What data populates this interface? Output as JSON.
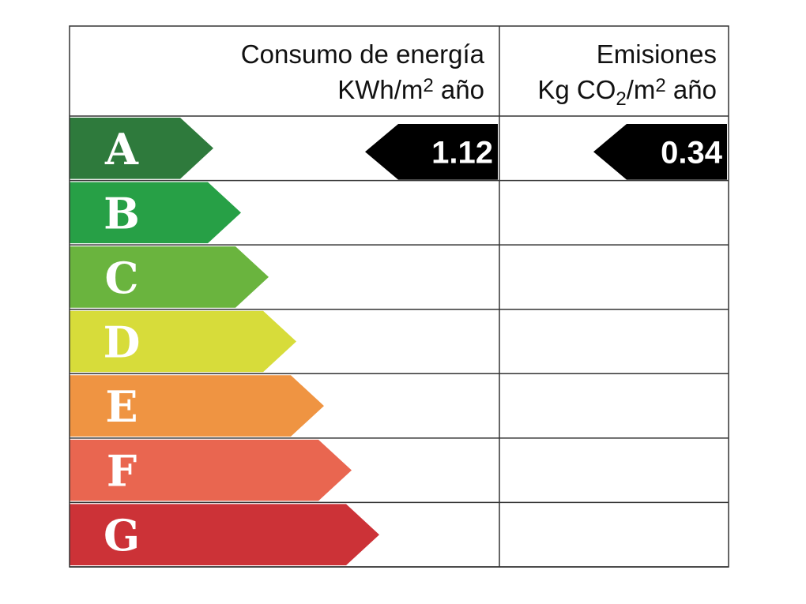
{
  "header": {
    "consumption": {
      "title": "Consumo de energía",
      "unit": [
        "KWh/m",
        "2",
        " año"
      ]
    },
    "emissions": {
      "title": "Emisiones",
      "unit": [
        "Kg CO",
        "2",
        "/m",
        "2",
        " año"
      ]
    }
  },
  "ratings": [
    {
      "letter": "A",
      "color": "#2e7a3c"
    },
    {
      "letter": "B",
      "color": "#27a046"
    },
    {
      "letter": "C",
      "color": "#6ab43e"
    },
    {
      "letter": "D",
      "color": "#d7dc3a"
    },
    {
      "letter": "E",
      "color": "#ef9442"
    },
    {
      "letter": "F",
      "color": "#e96650"
    },
    {
      "letter": "G",
      "color": "#cc3237"
    }
  ],
  "consumption": {
    "value": 1.12
  },
  "emissions": {
    "value": 0.34
  }
}
